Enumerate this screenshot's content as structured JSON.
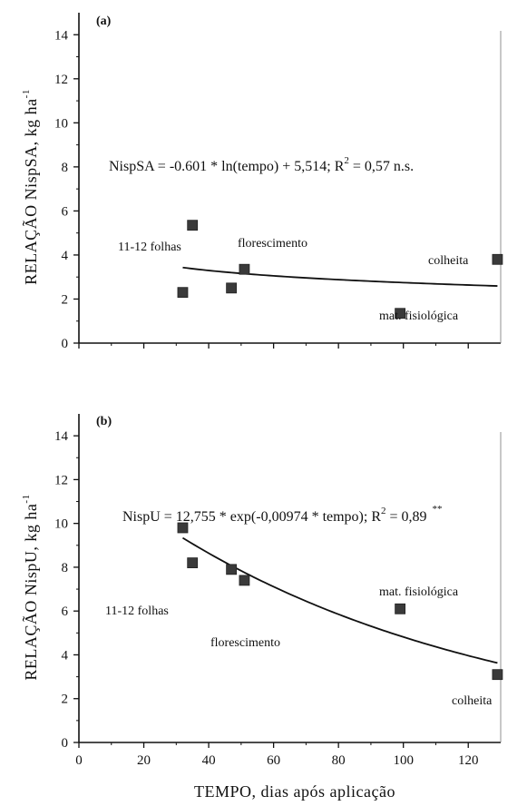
{
  "figure": {
    "xlabel": "TEMPO, dias após aplicação"
  },
  "chart_data": [
    {
      "type": "scatter",
      "panel_label": "(a)",
      "ylabel": "RELAÇÃO NispSA, kg ha",
      "ylabel_sup": "-1",
      "equation": "NispSA = -0.601 * ln(tempo) + 5,514; R",
      "equation_sup": "2",
      "equation_tail": " = 0,57 n.s.",
      "xlim": [
        0,
        130
      ],
      "ylim": [
        0,
        15
      ],
      "xticks": [
        0,
        20,
        40,
        60,
        80,
        100,
        120
      ],
      "yticks": [
        0,
        2,
        4,
        6,
        8,
        10,
        12,
        14
      ],
      "points": [
        {
          "x": 32,
          "y": 2.3
        },
        {
          "x": 35,
          "y": 5.35
        },
        {
          "x": 47,
          "y": 2.5
        },
        {
          "x": 51,
          "y": 3.35
        },
        {
          "x": 99,
          "y": 1.35
        },
        {
          "x": 129,
          "y": 3.8
        }
      ],
      "fit": {
        "model": "log",
        "a": -0.601,
        "b": 5.514,
        "x_range": [
          32,
          129
        ]
      },
      "annotations": [
        "11-12 folhas",
        "florescimento",
        "colheita",
        "mat. fisiológica"
      ]
    },
    {
      "type": "scatter",
      "panel_label": "(b)",
      "ylabel": "RELAÇÃO NispU, kg ha",
      "ylabel_sup": "-1",
      "equation": "NispU = 12,755 * exp(-0,00974 * tempo); R",
      "equation_sup": "2",
      "equation_tail": " = 0,89",
      "equation_sig": "**",
      "xlim": [
        0,
        130
      ],
      "ylim": [
        0,
        15
      ],
      "xticks": [
        0,
        20,
        40,
        60,
        80,
        100,
        120
      ],
      "yticks": [
        0,
        2,
        4,
        6,
        8,
        10,
        12,
        14
      ],
      "points": [
        {
          "x": 32,
          "y": 9.8
        },
        {
          "x": 35,
          "y": 8.2
        },
        {
          "x": 47,
          "y": 7.9
        },
        {
          "x": 51,
          "y": 7.4
        },
        {
          "x": 99,
          "y": 6.1
        },
        {
          "x": 129,
          "y": 3.1
        }
      ],
      "fit": {
        "model": "exp",
        "a": 12.755,
        "k": -0.00974,
        "x_range": [
          32,
          129
        ]
      },
      "annotations": [
        "11-12 folhas",
        "florescimento",
        "mat. fisiológica",
        "colheita"
      ]
    }
  ]
}
